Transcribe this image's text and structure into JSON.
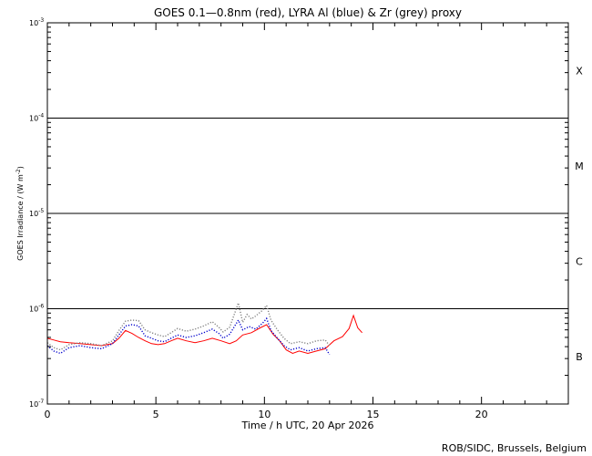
{
  "chart_data": {
    "type": "line",
    "title": "GOES 0.1—0.8nm (red), LYRA Al (blue) & Zr (grey) proxy",
    "xlabel": "Time / h UTC, 20 Apr 2026",
    "ylabel": "GOES Irradiance / (W m",
    "ylabel_sup": "-2",
    "ylabel_end": ")",
    "credit": "ROB/SIDC, Brussels, Belgium",
    "xlim": [
      0,
      24
    ],
    "xticks": [
      0,
      5,
      10,
      15,
      20
    ],
    "ylim": [
      1e-07,
      0.001
    ],
    "yscale": "log",
    "yticks": [
      {
        "value": 1e-07,
        "base": "10",
        "exp": "-7"
      },
      {
        "value": 1e-06,
        "base": "10",
        "exp": "-6"
      },
      {
        "value": 1e-05,
        "base": "10",
        "exp": "-5"
      },
      {
        "value": 0.0001,
        "base": "10",
        "exp": "-4"
      },
      {
        "value": 0.001,
        "base": "10",
        "exp": "-3"
      }
    ],
    "flare_classes": [
      {
        "label": "X",
        "value": 0.000316
      },
      {
        "label": "M",
        "value": 3.16e-05
      },
      {
        "label": "C",
        "value": 3.16e-06
      },
      {
        "label": "B",
        "value": 3.16e-07
      }
    ],
    "threshold_lines": [
      1e-06,
      1e-05,
      0.0001
    ],
    "series": [
      {
        "color": "#ff0000",
        "style": "solid",
        "x": [
          0.0,
          0.3,
          0.6,
          1.0,
          1.5,
          2.0,
          2.5,
          3.0,
          3.3,
          3.6,
          3.9,
          4.2,
          4.5,
          4.8,
          5.1,
          5.4,
          5.7,
          6.0,
          6.4,
          6.8,
          7.2,
          7.6,
          8.0,
          8.4,
          8.7,
          9.0,
          9.4,
          9.8,
          10.1,
          10.4,
          10.7,
          11.0,
          11.3,
          11.6,
          12.0,
          12.4,
          12.8,
          13.2,
          13.6,
          13.9,
          14.1,
          14.3,
          14.5
        ],
        "y": [
          4.9e-07,
          4.7e-07,
          4.5e-07,
          4.4e-07,
          4.3e-07,
          4.2e-07,
          4.1e-07,
          4.3e-07,
          4.9e-07,
          5.9e-07,
          5.5e-07,
          5e-07,
          4.6e-07,
          4.3e-07,
          4.2e-07,
          4.3e-07,
          4.6e-07,
          4.9e-07,
          4.6e-07,
          4.4e-07,
          4.6e-07,
          4.9e-07,
          4.6e-07,
          4.3e-07,
          4.6e-07,
          5.3e-07,
          5.6e-07,
          6.3e-07,
          6.8e-07,
          5.4e-07,
          4.6e-07,
          3.7e-07,
          3.4e-07,
          3.6e-07,
          3.4e-07,
          3.6e-07,
          3.8e-07,
          4.6e-07,
          5.1e-07,
          6.2e-07,
          8.5e-07,
          6.3e-07,
          5.6e-07
        ]
      },
      {
        "color": "#0000cc",
        "style": "dotted",
        "x": [
          0.0,
          0.3,
          0.6,
          1.0,
          1.5,
          2.0,
          2.5,
          3.0,
          3.3,
          3.6,
          3.9,
          4.2,
          4.5,
          4.8,
          5.1,
          5.4,
          5.7,
          6.0,
          6.4,
          6.8,
          7.2,
          7.6,
          7.9,
          8.1,
          8.4,
          8.8,
          9.0,
          9.3,
          9.6,
          9.9,
          10.1,
          10.3,
          10.6,
          10.9,
          11.2,
          11.6,
          12.0,
          12.4,
          12.8,
          13.0
        ],
        "y": [
          4.1e-07,
          3.6e-07,
          3.4e-07,
          3.9e-07,
          4.1e-07,
          3.9e-07,
          3.8e-07,
          4.3e-07,
          5.3e-07,
          6.6e-07,
          6.8e-07,
          6.6e-07,
          5.2e-07,
          4.9e-07,
          4.6e-07,
          4.5e-07,
          4.9e-07,
          5.3e-07,
          5e-07,
          5.2e-07,
          5.6e-07,
          6.1e-07,
          5.5e-07,
          4.9e-07,
          5.4e-07,
          7.6e-07,
          6e-07,
          6.5e-07,
          6.1e-07,
          7e-07,
          7.9e-07,
          5.9e-07,
          4.9e-07,
          4.1e-07,
          3.7e-07,
          3.9e-07,
          3.6e-07,
          3.8e-07,
          3.9e-07,
          3.3e-07
        ]
      },
      {
        "color": "#808080",
        "style": "dotted",
        "x": [
          0.0,
          0.3,
          0.6,
          1.0,
          1.5,
          2.0,
          2.5,
          3.0,
          3.3,
          3.6,
          3.9,
          4.2,
          4.5,
          4.8,
          5.1,
          5.4,
          5.7,
          6.0,
          6.4,
          6.8,
          7.2,
          7.6,
          7.9,
          8.1,
          8.4,
          8.8,
          9.0,
          9.2,
          9.4,
          9.6,
          9.9,
          10.1,
          10.3,
          10.6,
          10.9,
          11.2,
          11.6,
          12.0,
          12.4,
          12.8,
          13.0
        ],
        "y": [
          4.4e-07,
          3.9e-07,
          3.7e-07,
          4.2e-07,
          4.4e-07,
          4.3e-07,
          4.1e-07,
          4.6e-07,
          5.9e-07,
          7.4e-07,
          7.6e-07,
          7.5e-07,
          6e-07,
          5.6e-07,
          5.3e-07,
          5.1e-07,
          5.6e-07,
          6.2e-07,
          5.8e-07,
          6.1e-07,
          6.6e-07,
          7.3e-07,
          6.4e-07,
          5.7e-07,
          6.4e-07,
          1.15e-06,
          7.2e-07,
          8.7e-07,
          7.8e-07,
          8.4e-07,
          9.6e-07,
          1.08e-06,
          7.6e-07,
          6e-07,
          4.9e-07,
          4.3e-07,
          4.5e-07,
          4.3e-07,
          4.6e-07,
          4.7e-07,
          4.1e-07
        ]
      }
    ]
  }
}
